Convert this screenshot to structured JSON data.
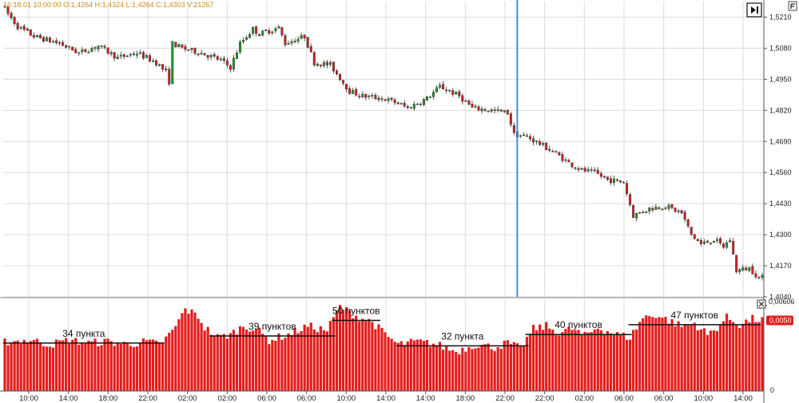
{
  "colors": {
    "bull": "#2a9a2a",
    "bear": "#d42020",
    "volume": "#e31e1e",
    "cursor": "#3a8fe0",
    "grid": "#dcdcdc",
    "axis": "#555555",
    "ohlc_text": "#d08a1c"
  },
  "icons": {
    "top_right_corner": "settings-corner-icon",
    "scroll_end": "scroll-to-end-icon",
    "volume_close": "close-icon"
  },
  "header": {
    "ohlc": "16:18.01 10:00:00   O:1,4264   H:1,4324   L:1,4264   C:1,4303   V:21267"
  },
  "volume_panel": {
    "max_label": "0,00606",
    "current_badge": "0,0050",
    "zero_label": "0",
    "range_labels": [
      "34 пункта",
      "39 пунктов",
      "50 пунктов",
      "32 пункта",
      "40 пунктов",
      "47 пунктов"
    ],
    "range_levels": [
      0.0034,
      0.0039,
      0.005,
      0.0032,
      0.004,
      0.0047
    ],
    "range_bar_spans": [
      [
        0,
        49
      ],
      [
        64,
        102
      ],
      [
        102,
        116
      ],
      [
        122,
        162
      ],
      [
        162,
        194
      ],
      [
        194,
        234
      ]
    ]
  },
  "chart_data": [
    {
      "type": "candlestick",
      "ylim": [
        1.404,
        1.5275
      ],
      "yticks": [
        "1,5210",
        "1,5080",
        "1,4950",
        "1,4820",
        "1,4690",
        "1,4560",
        "1,4430",
        "1,4300",
        "1,4170",
        "1,4040"
      ],
      "xticks": [
        "10:00",
        "14:00",
        "18:00",
        "22:00",
        "02:00",
        "02:00",
        "06:00",
        "06:00",
        "10:00",
        "14:00",
        "14:00",
        "18:00",
        "22:00",
        "22:00",
        "02:00",
        "06:00",
        "06:00",
        "10:00",
        "14:00"
      ],
      "cursor_bar_index": 159,
      "bar_count": 236,
      "anchors": [
        [
          0,
          1.526
        ],
        [
          5,
          1.517
        ],
        [
          10,
          1.513
        ],
        [
          18,
          1.51
        ],
        [
          24,
          1.506
        ],
        [
          30,
          1.509
        ],
        [
          36,
          1.504
        ],
        [
          42,
          1.506
        ],
        [
          48,
          1.502
        ],
        [
          51,
          1.498
        ],
        [
          52,
          1.494
        ],
        [
          53,
          1.51
        ],
        [
          56,
          1.508
        ],
        [
          62,
          1.506
        ],
        [
          68,
          1.503
        ],
        [
          71,
          1.5
        ],
        [
          74,
          1.51
        ],
        [
          78,
          1.516
        ],
        [
          80,
          1.514
        ],
        [
          86,
          1.5165
        ],
        [
          88,
          1.51
        ],
        [
          94,
          1.513
        ],
        [
          97,
          1.502
        ],
        [
          102,
          1.501
        ],
        [
          108,
          1.49
        ],
        [
          112,
          1.488
        ],
        [
          118,
          1.487
        ],
        [
          123,
          1.485
        ],
        [
          126,
          1.483
        ],
        [
          132,
          1.487
        ],
        [
          136,
          1.492
        ],
        [
          142,
          1.488
        ],
        [
          146,
          1.483
        ],
        [
          152,
          1.482
        ],
        [
          157,
          1.481
        ],
        [
          159,
          1.472
        ],
        [
          163,
          1.471
        ],
        [
          167,
          1.468
        ],
        [
          172,
          1.464
        ],
        [
          176,
          1.46
        ],
        [
          180,
          1.457
        ],
        [
          184,
          1.456
        ],
        [
          188,
          1.453
        ],
        [
          193,
          1.452
        ],
        [
          196,
          1.438
        ],
        [
          201,
          1.441
        ],
        [
          206,
          1.442
        ],
        [
          211,
          1.439
        ],
        [
          214,
          1.43
        ],
        [
          217,
          1.426
        ],
        [
          221,
          1.428
        ],
        [
          224,
          1.425
        ],
        [
          226,
          1.428
        ],
        [
          228,
          1.415
        ],
        [
          232,
          1.416
        ],
        [
          235,
          1.412
        ]
      ]
    },
    {
      "type": "bar",
      "series": [
        {
          "values_anchors": [
            [
              0,
              0.0035
            ],
            [
              8,
              0.0036
            ],
            [
              14,
              0.0033
            ],
            [
              20,
              0.0036
            ],
            [
              26,
              0.0034
            ],
            [
              32,
              0.0035
            ],
            [
              38,
              0.0033
            ],
            [
              44,
              0.0035
            ],
            [
              48,
              0.0033
            ],
            [
              52,
              0.0042
            ],
            [
              56,
              0.0058
            ],
            [
              60,
              0.0053
            ],
            [
              62,
              0.0045
            ],
            [
              66,
              0.0038
            ],
            [
              70,
              0.004
            ],
            [
              74,
              0.0046
            ],
            [
              78,
              0.0044
            ],
            [
              82,
              0.0036
            ],
            [
              88,
              0.004
            ],
            [
              94,
              0.0046
            ],
            [
              100,
              0.0043
            ],
            [
              104,
              0.006
            ],
            [
              106,
              0.0057
            ],
            [
              110,
              0.0052
            ],
            [
              114,
              0.0049
            ],
            [
              118,
              0.004
            ],
            [
              122,
              0.0033
            ],
            [
              128,
              0.0035
            ],
            [
              134,
              0.0033
            ],
            [
              140,
              0.0028
            ],
            [
              146,
              0.0033
            ],
            [
              152,
              0.0031
            ],
            [
              156,
              0.0034
            ],
            [
              160,
              0.003
            ],
            [
              164,
              0.0044
            ],
            [
              168,
              0.0046
            ],
            [
              172,
              0.0041
            ],
            [
              176,
              0.0044
            ],
            [
              180,
              0.0039
            ],
            [
              184,
              0.0045
            ],
            [
              190,
              0.004
            ],
            [
              194,
              0.0038
            ],
            [
              198,
              0.0052
            ],
            [
              202,
              0.0054
            ],
            [
              206,
              0.005
            ],
            [
              210,
              0.0046
            ],
            [
              214,
              0.0048
            ],
            [
              218,
              0.004
            ],
            [
              220,
              0.0043
            ],
            [
              224,
              0.0052
            ],
            [
              228,
              0.0047
            ],
            [
              232,
              0.0051
            ],
            [
              235,
              0.005
            ]
          ]
        }
      ],
      "ylim": [
        0,
        0.0065
      ]
    }
  ]
}
